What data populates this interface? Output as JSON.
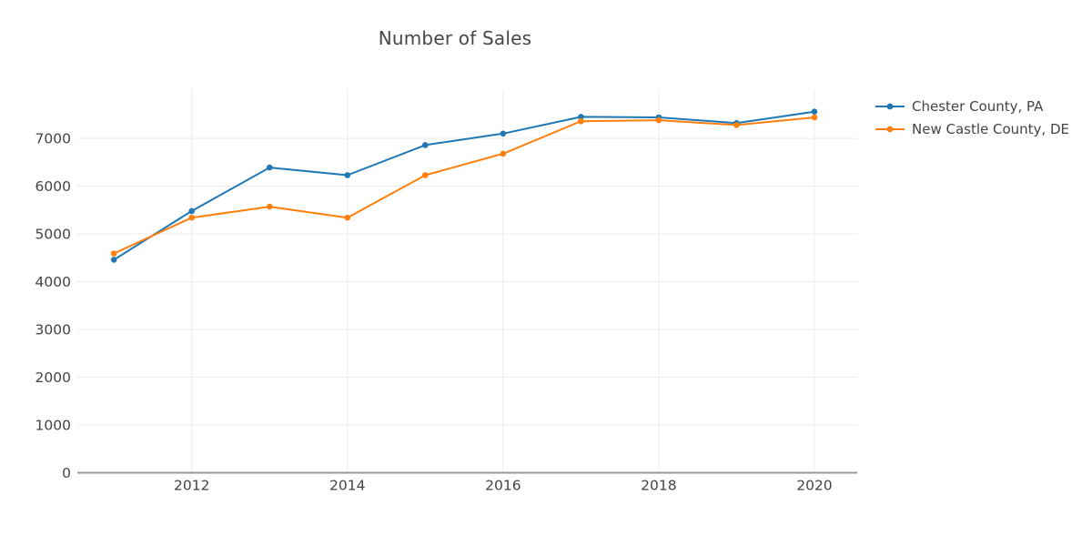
{
  "chart_data": {
    "type": "line",
    "title": "Number of Sales",
    "x": [
      2011,
      2012,
      2013,
      2014,
      2015,
      2016,
      2017,
      2018,
      2019,
      2020
    ],
    "series": [
      {
        "name": "Chester County, PA",
        "color": "#1f77b4",
        "values": [
          4460,
          5480,
          6390,
          6230,
          6860,
          7100,
          7450,
          7440,
          7320,
          7560
        ]
      },
      {
        "name": "New Castle County, DE",
        "color": "#ff7f0e",
        "values": [
          4590,
          5340,
          5570,
          5340,
          6230,
          6680,
          7360,
          7380,
          7280,
          7440
        ]
      }
    ],
    "xlabel": "",
    "ylabel": "",
    "xticks": [
      2012,
      2014,
      2016,
      2018,
      2020
    ],
    "yticks": [
      0,
      1000,
      2000,
      3000,
      4000,
      5000,
      6000,
      7000
    ],
    "xlim": [
      2010.53,
      2020.55
    ],
    "ylim": [
      0,
      8030
    ],
    "grid": true,
    "legend_position": "outside-top-right",
    "colors": {
      "grid": "#ececec",
      "axis_line": "#9b9b9b",
      "text": "#444444",
      "background": "#ffffff"
    }
  }
}
